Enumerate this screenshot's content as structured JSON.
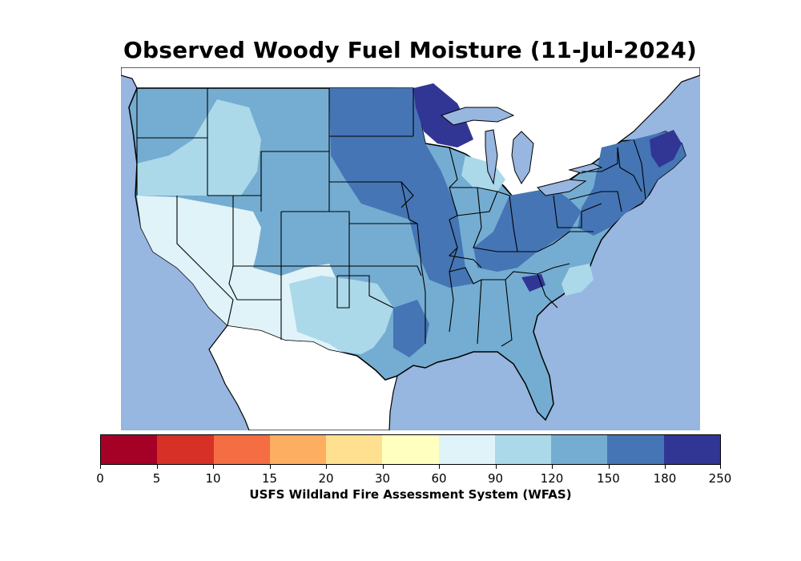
{
  "title": "Observed Woody Fuel Moisture (11-Jul-2024)",
  "colorbar": {
    "caption": "USFS Wildland Fire Assessment System (WFAS)",
    "tick_labels": [
      "0",
      "5",
      "10",
      "15",
      "20",
      "30",
      "60",
      "90",
      "120",
      "150",
      "180",
      "250"
    ],
    "colors": [
      "#a50026",
      "#d73027",
      "#f46d43",
      "#fdae61",
      "#fee090",
      "#ffffbf",
      "#e0f3f8",
      "#abd9e9",
      "#74add1",
      "#4575b4",
      "#313695"
    ]
  },
  "map": {
    "water_color": "#97b6e0",
    "land_outside_color": "#ffffff",
    "border_color": "#000000"
  }
}
